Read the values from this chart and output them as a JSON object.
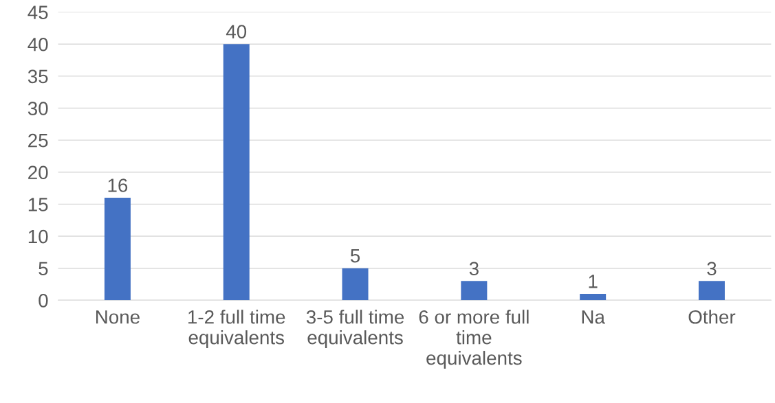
{
  "chart_data": {
    "type": "bar",
    "categories": [
      "None",
      "1-2 full time equivalents",
      "3-5 full time equivalents",
      "6 or more full time equivalents",
      "Na",
      "Other"
    ],
    "values": [
      16,
      40,
      5,
      3,
      1,
      3
    ],
    "color": "#4472c4",
    "ylim": [
      0,
      45
    ],
    "yticks": [
      0,
      5,
      10,
      15,
      20,
      25,
      30,
      35,
      40,
      45
    ],
    "grid": "y",
    "data_labels": true
  }
}
